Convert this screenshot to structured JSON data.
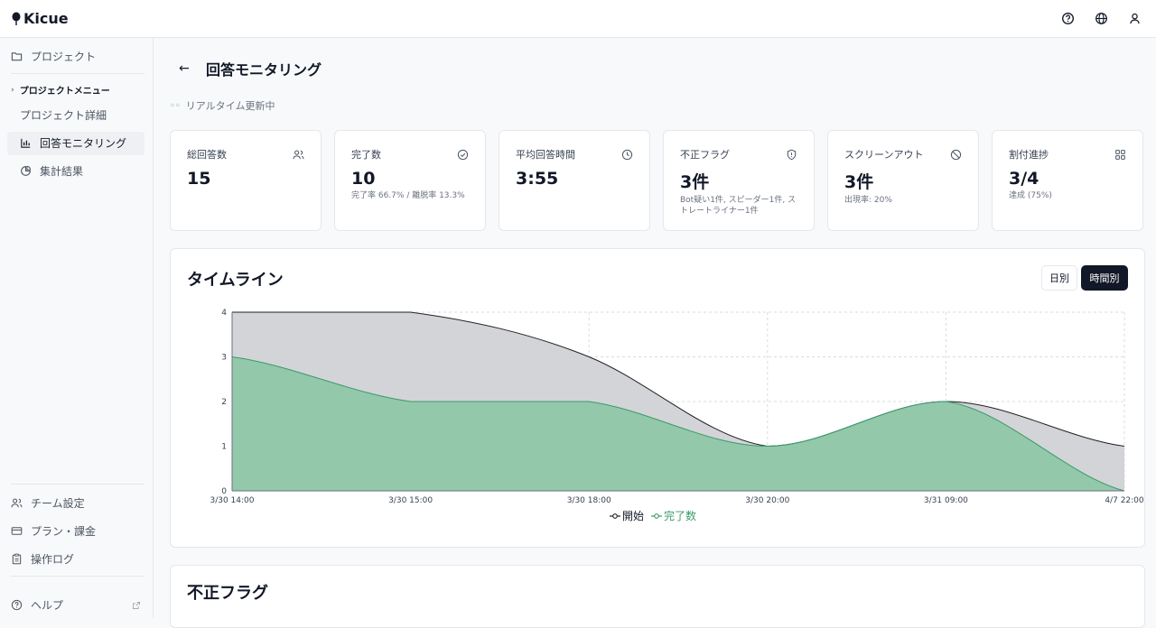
{
  "app": {
    "name": "Kicue"
  },
  "topbar": {
    "icons": [
      "help-icon",
      "globe-icon",
      "user-icon"
    ]
  },
  "sidebar": {
    "projects_label": "プロジェクト",
    "menu_label": "プロジェクトメニュー",
    "items": [
      {
        "label": "プロジェクト詳細"
      },
      {
        "label": "回答モニタリング",
        "active": true
      },
      {
        "label": "集計結果"
      }
    ],
    "bottom": [
      {
        "label": "チーム設定"
      },
      {
        "label": "プラン・課金"
      },
      {
        "label": "操作ログ"
      },
      {
        "label": "ヘルプ"
      }
    ]
  },
  "page": {
    "title": "回答モニタリング",
    "live_label": "リアルタイム更新中"
  },
  "cards": [
    {
      "title": "総回答数",
      "value": "15",
      "sub": ""
    },
    {
      "title": "完了数",
      "value": "10",
      "sub": "完了率 66.7% / 離脱率 13.3%"
    },
    {
      "title": "平均回答時間",
      "value": "3:55",
      "sub": ""
    },
    {
      "title": "不正フラグ",
      "value": "3件",
      "sub": "Bot疑い1件, スピーダー1件, ストレートライナー1件"
    },
    {
      "title": "スクリーンアウト",
      "value": "3件",
      "sub": "出現率: 20%"
    },
    {
      "title": "割付進捗",
      "value": "3/4",
      "sub": "達成 (75%)"
    }
  ],
  "timeline": {
    "title": "タイムライン",
    "toggle_day": "日別",
    "toggle_hour": "時間別"
  },
  "fraud_panel": {
    "title": "不正フラグ"
  },
  "colors": {
    "start": "#d1d2d6",
    "complete": "#8fc7a8",
    "complete_line": "#3a9a6a"
  },
  "chart_data": {
    "type": "area",
    "categories": [
      "3/30 14:00",
      "3/30 15:00",
      "3/30 18:00",
      "3/30 20:00",
      "3/31 09:00",
      "4/7 22:00"
    ],
    "series": [
      {
        "name": "開始",
        "values": [
          4,
          4,
          3,
          1,
          2,
          1
        ]
      },
      {
        "name": "完了数",
        "values": [
          3,
          2,
          2,
          1,
          2,
          0
        ]
      }
    ],
    "ylim": [
      0,
      4
    ],
    "yticks": [
      0,
      1,
      2,
      3,
      4
    ],
    "grid": true,
    "legend": "bottom"
  }
}
